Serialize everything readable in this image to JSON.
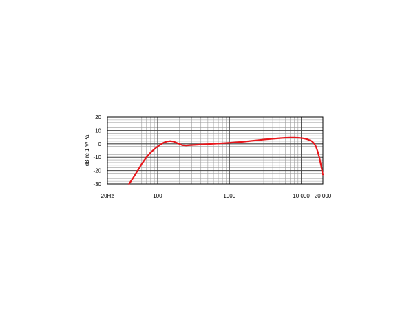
{
  "chart_data": {
    "type": "line",
    "xscale": "log",
    "xlim": [
      20,
      20000
    ],
    "ylim": [
      -30,
      20
    ],
    "grid": true,
    "ylabel": "dB re 1 V/Pa",
    "xticks": [
      {
        "value": 20,
        "label": "20Hz"
      },
      {
        "value": 100,
        "label": "100"
      },
      {
        "value": 1000,
        "label": "1000"
      },
      {
        "value": 10000,
        "label": "10 000"
      },
      {
        "value": 20000,
        "label": "20 000"
      }
    ],
    "yticks": [
      {
        "value": 20,
        "label": "20"
      },
      {
        "value": 10,
        "label": "10"
      },
      {
        "value": 0,
        "label": "0"
      },
      {
        "value": -10,
        "label": "-10"
      },
      {
        "value": -20,
        "label": "-20"
      },
      {
        "value": -30,
        "label": "-30"
      }
    ],
    "series": [
      {
        "color": "#e8161b",
        "x": [
          40,
          45,
          50,
          55,
          60,
          70,
          80,
          90,
          100,
          110,
          120,
          135,
          150,
          165,
          180,
          200,
          220,
          250,
          280,
          320,
          400,
          500,
          700,
          1000,
          1500,
          2000,
          3000,
          4000,
          5000,
          6000,
          7000,
          8000,
          9000,
          10000,
          11000,
          12000,
          13000,
          14000,
          15000,
          16000,
          17000,
          18000,
          19000,
          20000
        ],
        "y": [
          -30,
          -26,
          -22,
          -18.5,
          -15,
          -10,
          -6.5,
          -4,
          -2,
          -0.5,
          0.8,
          1.8,
          2.1,
          1.8,
          1,
          0,
          -1,
          -1.2,
          -1,
          -0.8,
          -0.5,
          -0.2,
          0.3,
          0.8,
          1.5,
          2.2,
          3.2,
          3.8,
          4.2,
          4.5,
          4.6,
          4.6,
          4.5,
          4.3,
          4,
          3.5,
          2.8,
          2,
          0.5,
          -2,
          -6,
          -11,
          -17,
          -23
        ]
      }
    ]
  }
}
